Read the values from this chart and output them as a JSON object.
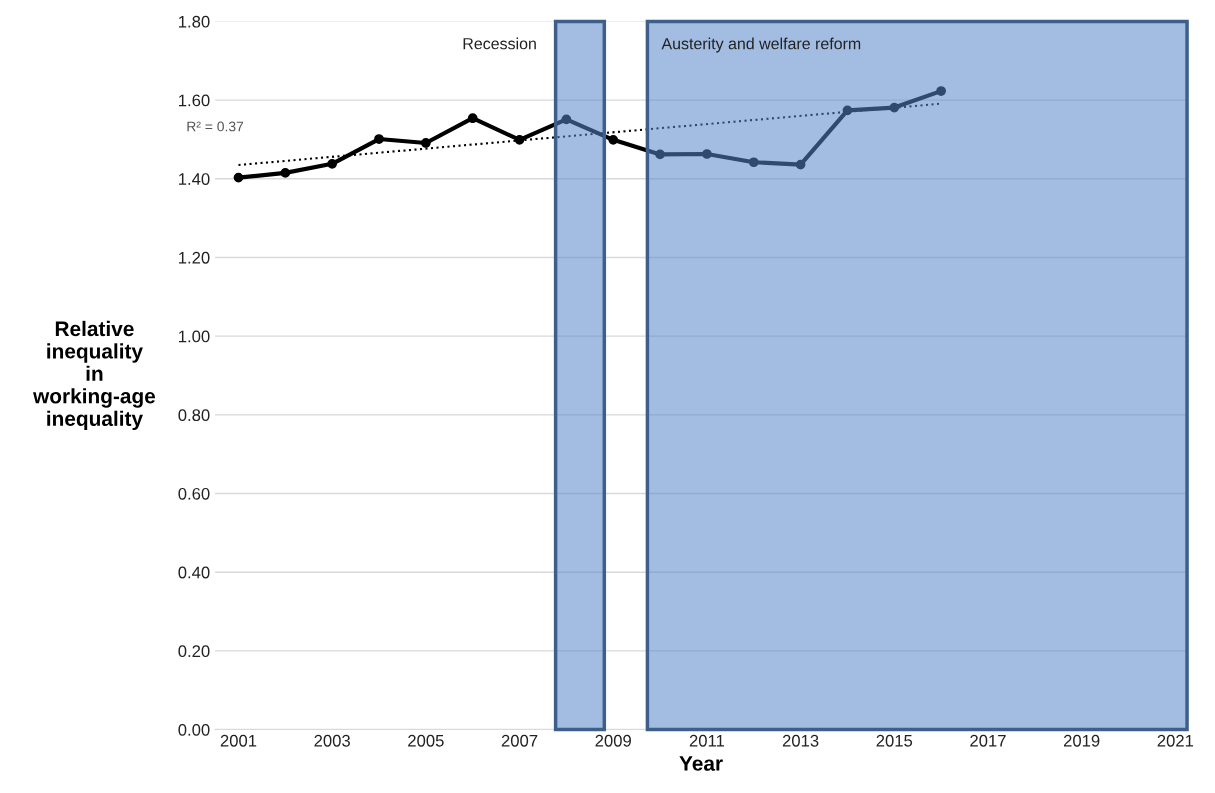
{
  "chart_data": {
    "type": "line",
    "xlabel": "Year",
    "ylabel": "Relative\ninequality\nin\nworking-age\ninequality",
    "series": [
      {
        "color": "#000000",
        "x": [
          2001,
          2002,
          2003,
          2004,
          2005,
          2006,
          2007,
          2008,
          2009,
          2010,
          2011,
          2012,
          2013,
          2014,
          2015,
          2016
        ],
        "values": [
          1.403,
          1.415,
          1.438,
          1.501,
          1.491,
          1.554,
          1.499,
          1.551,
          1.499,
          1.462,
          1.463,
          1.442,
          1.436,
          1.574,
          1.581,
          1.623
        ],
        "marker": "circle",
        "line_style": "solid"
      },
      {
        "type": "line",
        "color": "#000000",
        "x": [
          2001,
          2016
        ],
        "values": [
          1.435,
          1.591
        ],
        "marker": "none",
        "line_style": "dotted"
      }
    ],
    "annotations": [
      "R² = 0.37"
    ],
    "bands": [
      {
        "axis": "x",
        "from": 2007.77,
        "to": 2008.81,
        "label": "Recession",
        "color": "#5587c8"
      },
      {
        "axis": "x",
        "from": 2009.73,
        "to": 2021.25,
        "label": "Austerity and welfare reform",
        "color": "#5587c8"
      }
    ],
    "xlim": [
      2000.5,
      2021.25
    ],
    "ylim": [
      0,
      1.8
    ],
    "xticks": [
      2001,
      2003,
      2005,
      2007,
      2009,
      2011,
      2013,
      2015,
      2017,
      2019,
      2021
    ],
    "yticks": [
      {
        "value": 0,
        "label": "0.00"
      },
      {
        "value": 0.2,
        "label": "0.20"
      },
      {
        "value": 0.4,
        "label": "0.40"
      },
      {
        "value": 0.6,
        "label": "0.60"
      },
      {
        "value": 0.8,
        "label": "0.80"
      },
      {
        "value": 1.0,
        "label": "1.00"
      },
      {
        "value": 1.2,
        "label": "1.20"
      },
      {
        "value": 1.4,
        "label": "1.40"
      },
      {
        "value": 1.6,
        "label": "1.60"
      },
      {
        "value": 1.8,
        "label": "1.80"
      }
    ],
    "grid": "y",
    "legend": false
  }
}
